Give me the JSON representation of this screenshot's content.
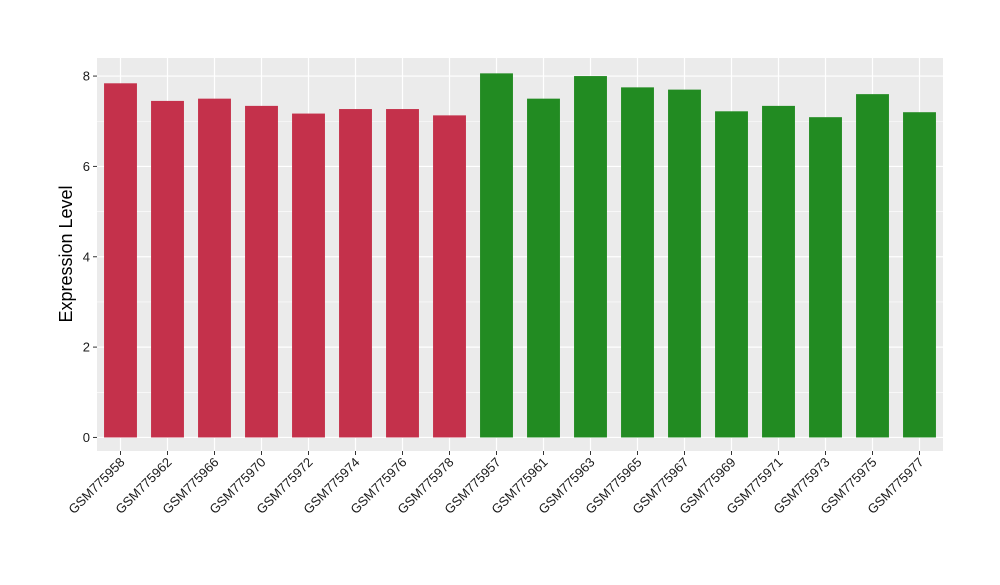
{
  "chart_data": {
    "type": "bar",
    "categories": [
      "GSM775958",
      "GSM775962",
      "GSM775966",
      "GSM775970",
      "GSM775972",
      "GSM775974",
      "GSM775976",
      "GSM775978",
      "GSM775957",
      "GSM775961",
      "GSM775963",
      "GSM775965",
      "GSM775967",
      "GSM775969",
      "GSM775971",
      "GSM775973",
      "GSM775975",
      "GSM775977"
    ],
    "values": [
      7.84,
      7.45,
      7.5,
      7.34,
      7.17,
      7.27,
      7.27,
      7.13,
      8.06,
      7.5,
      8.0,
      7.75,
      7.7,
      7.22,
      7.34,
      7.09,
      7.6,
      7.2
    ],
    "bar_colors": [
      "#c4314b",
      "#c4314b",
      "#c4314b",
      "#c4314b",
      "#c4314b",
      "#c4314b",
      "#c4314b",
      "#c4314b",
      "#228b22",
      "#228b22",
      "#228b22",
      "#228b22",
      "#228b22",
      "#228b22",
      "#228b22",
      "#228b22",
      "#228b22",
      "#228b22"
    ],
    "title": "",
    "xlabel": "",
    "ylabel": "Expression Level",
    "ylim": [
      -0.3,
      8.4
    ],
    "yticks": [
      0,
      2,
      4,
      6,
      8
    ],
    "grid": true,
    "legend": "none",
    "colors": {
      "panel_background": "#ebebeb",
      "gridline": "#ffffff",
      "group_1": "#c4314b",
      "group_2": "#228b22"
    }
  }
}
